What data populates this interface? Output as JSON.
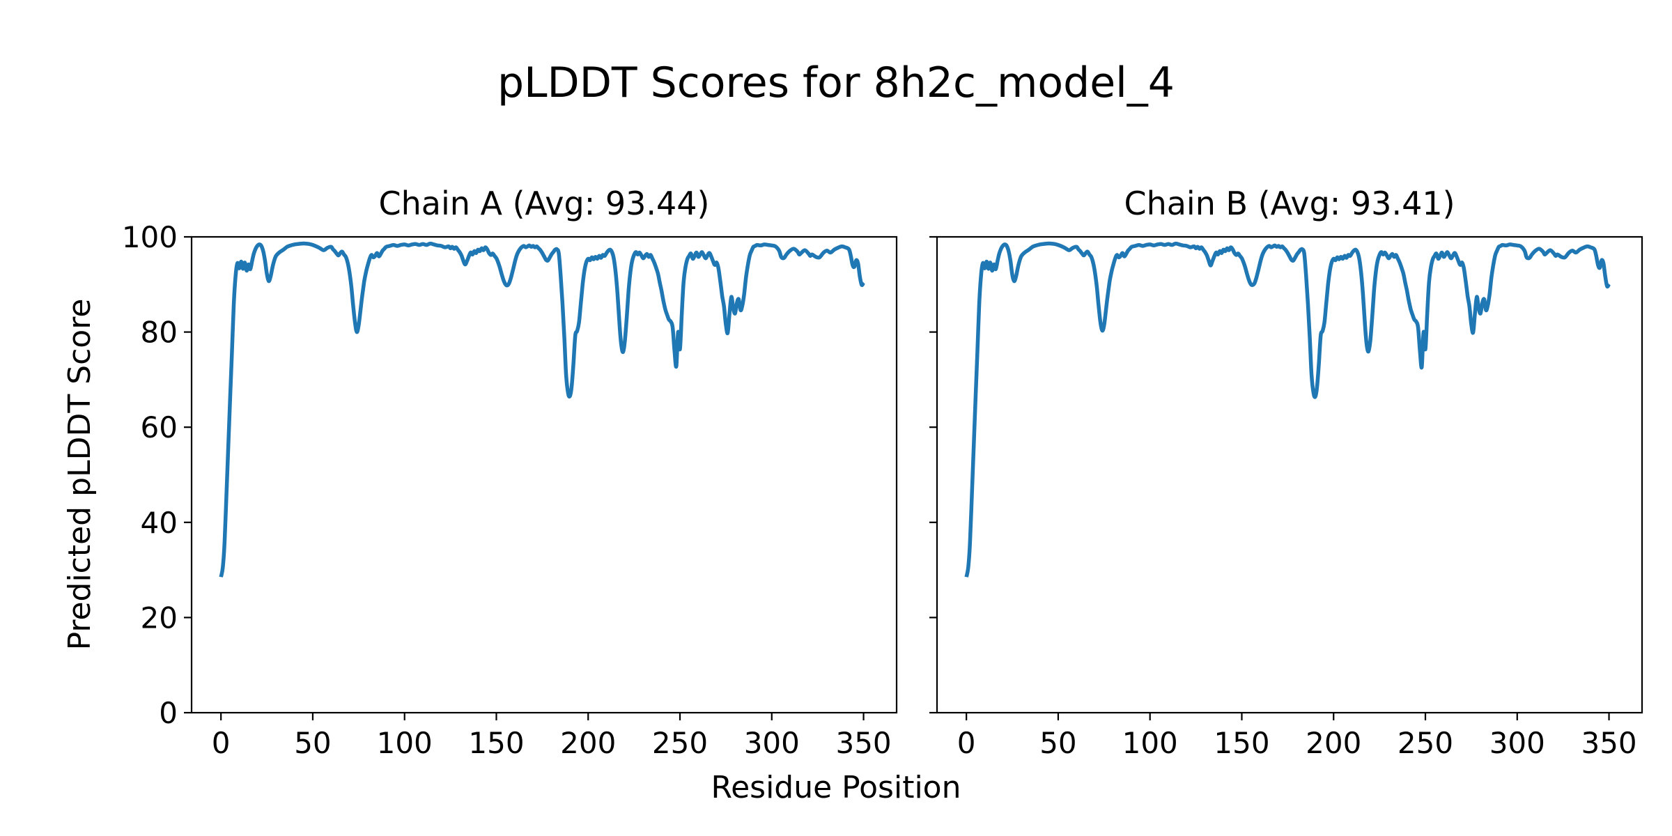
{
  "figure": {
    "title": "pLDDT Scores for 8h2c_model_4",
    "xlabel": "Residue Position",
    "ylabel": "Predicted pLDDT Score",
    "line_color": "#1f77b4",
    "background_color": "#ffffff",
    "text_color": "#000000"
  },
  "chart_data": [
    {
      "type": "line",
      "title": "Chain A (Avg: 93.44)",
      "chain": "A",
      "average_plddt": 93.44,
      "xlabel": "Residue Position",
      "ylabel": "Predicted pLDDT Score",
      "x_ticks": [
        0,
        50,
        100,
        150,
        200,
        250,
        300,
        350
      ],
      "y_ticks": [
        0,
        20,
        40,
        60,
        80,
        100
      ],
      "show_y_tick_labels": true,
      "xlim": [
        -16,
        368
      ],
      "ylim": [
        0,
        100
      ],
      "grid": false,
      "x": [
        0,
        1,
        2,
        3,
        4,
        5,
        6,
        7,
        8,
        9,
        10,
        11,
        12,
        13,
        14,
        15,
        16,
        17,
        18,
        19,
        20,
        21,
        22,
        23,
        24,
        25,
        26,
        27,
        28,
        29,
        30,
        32,
        34,
        36,
        38,
        40,
        42,
        44,
        46,
        48,
        50,
        52,
        54,
        56,
        58,
        60,
        61,
        62,
        63,
        64,
        65,
        66,
        67,
        68,
        69,
        70,
        71,
        72,
        73,
        74,
        75,
        76,
        77,
        78,
        79,
        80,
        81,
        82,
        83,
        84,
        85,
        86,
        87,
        88,
        89,
        90,
        92,
        94,
        96,
        98,
        100,
        102,
        104,
        106,
        108,
        110,
        112,
        114,
        116,
        118,
        120,
        122,
        124,
        125,
        126,
        127,
        128,
        129,
        130,
        131,
        132,
        133,
        134,
        135,
        136,
        137,
        138,
        139,
        140,
        141,
        142,
        143,
        144,
        145,
        146,
        147,
        148,
        149,
        150,
        151,
        152,
        153,
        154,
        155,
        156,
        157,
        158,
        159,
        160,
        161,
        162,
        163,
        164,
        165,
        166,
        167,
        168,
        169,
        170,
        171,
        172,
        173,
        174,
        175,
        176,
        177,
        178,
        179,
        180,
        181,
        182,
        183,
        184,
        185,
        186,
        187,
        188,
        189,
        190,
        191,
        192,
        193,
        194,
        195,
        196,
        197,
        198,
        199,
        200,
        201,
        202,
        203,
        204,
        205,
        206,
        207,
        208,
        209,
        210,
        211,
        212,
        213,
        214,
        215,
        216,
        217,
        218,
        219,
        220,
        221,
        222,
        223,
        224,
        225,
        226,
        227,
        228,
        229,
        230,
        231,
        232,
        233,
        234,
        235,
        236,
        237,
        238,
        239,
        240,
        241,
        242,
        243,
        244,
        245,
        246,
        247,
        248,
        249,
        250,
        251,
        252,
        253,
        254,
        255,
        256,
        257,
        258,
        259,
        260,
        261,
        262,
        263,
        264,
        265,
        266,
        267,
        268,
        269,
        270,
        271,
        272,
        273,
        274,
        275,
        276,
        277,
        278,
        279,
        280,
        281,
        282,
        283,
        284,
        285,
        286,
        287,
        288,
        289,
        290,
        291,
        292,
        294,
        296,
        298,
        300,
        302,
        304,
        305,
        306,
        307,
        308,
        310,
        312,
        314,
        315,
        316,
        318,
        320,
        321,
        322,
        324,
        326,
        328,
        330,
        332,
        334,
        336,
        338,
        340,
        342,
        343,
        344,
        345,
        346,
        347,
        348,
        349,
        350
      ],
      "y": [
        28.5,
        30.5,
        36,
        46,
        56,
        66,
        76,
        86,
        92,
        94.5,
        93.4,
        94.8,
        93.3,
        94.6,
        92.9,
        94.2,
        93.2,
        95,
        96.6,
        97.6,
        98.2,
        98.4,
        98.1,
        97,
        95,
        92.2,
        90.7,
        91.6,
        93.5,
        95,
        96,
        96.8,
        97.3,
        97.9,
        98.2,
        98.4,
        98.5,
        98.6,
        98.6,
        98.5,
        98.3,
        98,
        97.6,
        97.2,
        97.7,
        97.9,
        97.4,
        97,
        96.5,
        96.1,
        96.6,
        96.9,
        96.3,
        95.8,
        94.6,
        92.6,
        89.6,
        85.6,
        82,
        80,
        81.4,
        84.6,
        87.8,
        90.6,
        92.6,
        94.1,
        95.4,
        96.2,
        95.7,
        96,
        96.6,
        95.9,
        96.4,
        97.1,
        97.5,
        97.9,
        98.1,
        98.3,
        98.1,
        98.3,
        98.4,
        98.2,
        98.4,
        98.5,
        98.3,
        98.5,
        98.3,
        98.6,
        98.4,
        98.2,
        98.1,
        97.8,
        98,
        97.6,
        97.9,
        97.5,
        97.8,
        97.3,
        96.8,
        96.1,
        95,
        94.2,
        94.9,
        95.9,
        96.7,
        96.3,
        97,
        96.6,
        97.3,
        97,
        97.6,
        97.2,
        97.8,
        97.4,
        96.6,
        96.2,
        96.5,
        96,
        95.5,
        94.6,
        93.4,
        92,
        90.8,
        90,
        89.8,
        90.3,
        91.5,
        93,
        94.6,
        96,
        96.9,
        97.5,
        97.9,
        98.1,
        97.8,
        98,
        98.2,
        97.9,
        98.1,
        97.8,
        98,
        97.6,
        97.2,
        96.6,
        95.9,
        95.2,
        95,
        95.6,
        96.3,
        96.8,
        97.3,
        97.4,
        96.5,
        92,
        86,
        79,
        71,
        67.3,
        66.5,
        68.5,
        73.5,
        79.3,
        80.2,
        82,
        86,
        90,
        93,
        94.7,
        95.4,
        95.1,
        95.7,
        95.3,
        95.8,
        95.4,
        96,
        95.6,
        96.2,
        96,
        96.6,
        97.1,
        97.3,
        96.8,
        95.4,
        92.4,
        88,
        82,
        77.4,
        75.8,
        78.2,
        83,
        88.6,
        92.6,
        95,
        96.2,
        96.8,
        96.3,
        96.7,
        96.1,
        95.5,
        96,
        96.4,
        95.8,
        96.2,
        95.4,
        94.6,
        93.5,
        92.3,
        90.4,
        88.6,
        86.5,
        84.8,
        83.6,
        82.6,
        82.2,
        81,
        76.2,
        72.8,
        80,
        76.4,
        84,
        90.6,
        93.6,
        95.3,
        96,
        96.5,
        95.4,
        96,
        96.7,
        95.8,
        96.3,
        96.8,
        96.1,
        95.5,
        96.1,
        96.6,
        95.9,
        94.9,
        94.1,
        94.6,
        93.3,
        90.6,
        87.6,
        85.3,
        81.6,
        79.8,
        84,
        87.4,
        85.1,
        83.9,
        86.1,
        86.9,
        84.6,
        85.6,
        88.1,
        91.6,
        94.1,
        96.1,
        97.1,
        97.9,
        98.1,
        98.3,
        98.2,
        98.4,
        98.3,
        98.2,
        98,
        97.1,
        95.9,
        95.5,
        95.7,
        96.3,
        97.1,
        97.5,
        96.9,
        96.3,
        96.6,
        97.2,
        96.5,
        96,
        96.3,
        95.8,
        95.7,
        96.6,
        97.1,
        96.7,
        97.3,
        97.7,
        98,
        97.8,
        97.4,
        96.1,
        94.1,
        93.7,
        95.1,
        94.4,
        91.6,
        89.9,
        90.4
      ]
    },
    {
      "type": "line",
      "title": "Chain B (Avg: 93.41)",
      "chain": "B",
      "average_plddt": 93.41,
      "xlabel": "Residue Position",
      "ylabel": "Predicted pLDDT Score",
      "x_ticks": [
        0,
        50,
        100,
        150,
        200,
        250,
        300,
        350
      ],
      "y_ticks": [
        0,
        20,
        40,
        60,
        80,
        100
      ],
      "show_y_tick_labels": false,
      "xlim": [
        -16,
        368
      ],
      "ylim": [
        0,
        100
      ],
      "grid": false,
      "x": [
        0,
        1,
        2,
        3,
        4,
        5,
        6,
        7,
        8,
        9,
        10,
        11,
        12,
        13,
        14,
        15,
        16,
        17,
        18,
        19,
        20,
        21,
        22,
        23,
        24,
        25,
        26,
        27,
        28,
        29,
        30,
        32,
        34,
        36,
        38,
        40,
        42,
        44,
        46,
        48,
        50,
        52,
        54,
        56,
        58,
        60,
        61,
        62,
        63,
        64,
        65,
        66,
        67,
        68,
        69,
        70,
        71,
        72,
        73,
        74,
        75,
        76,
        77,
        78,
        79,
        80,
        81,
        82,
        83,
        84,
        85,
        86,
        87,
        88,
        89,
        90,
        92,
        94,
        96,
        98,
        100,
        102,
        104,
        106,
        108,
        110,
        112,
        114,
        116,
        118,
        120,
        122,
        124,
        125,
        126,
        127,
        128,
        129,
        130,
        131,
        132,
        133,
        134,
        135,
        136,
        137,
        138,
        139,
        140,
        141,
        142,
        143,
        144,
        145,
        146,
        147,
        148,
        149,
        150,
        151,
        152,
        153,
        154,
        155,
        156,
        157,
        158,
        159,
        160,
        161,
        162,
        163,
        164,
        165,
        166,
        167,
        168,
        169,
        170,
        171,
        172,
        173,
        174,
        175,
        176,
        177,
        178,
        179,
        180,
        181,
        182,
        183,
        184,
        185,
        186,
        187,
        188,
        189,
        190,
        191,
        192,
        193,
        194,
        195,
        196,
        197,
        198,
        199,
        200,
        201,
        202,
        203,
        204,
        205,
        206,
        207,
        208,
        209,
        210,
        211,
        212,
        213,
        214,
        215,
        216,
        217,
        218,
        219,
        220,
        221,
        222,
        223,
        224,
        225,
        226,
        227,
        228,
        229,
        230,
        231,
        232,
        233,
        234,
        235,
        236,
        237,
        238,
        239,
        240,
        241,
        242,
        243,
        244,
        245,
        246,
        247,
        248,
        249,
        250,
        251,
        252,
        253,
        254,
        255,
        256,
        257,
        258,
        259,
        260,
        261,
        262,
        263,
        264,
        265,
        266,
        267,
        268,
        269,
        270,
        271,
        272,
        273,
        274,
        275,
        276,
        277,
        278,
        279,
        280,
        281,
        282,
        283,
        284,
        285,
        286,
        287,
        288,
        289,
        290,
        291,
        292,
        294,
        296,
        298,
        300,
        302,
        304,
        305,
        306,
        307,
        308,
        310,
        312,
        314,
        315,
        316,
        318,
        320,
        321,
        322,
        324,
        326,
        328,
        330,
        332,
        334,
        336,
        338,
        340,
        342,
        343,
        344,
        345,
        346,
        347,
        348,
        349,
        350
      ],
      "y": [
        28.5,
        30.5,
        36,
        46,
        56,
        66,
        76,
        86,
        92,
        94.5,
        93.4,
        94.8,
        93.3,
        94.6,
        92.9,
        94.2,
        93.2,
        95,
        96.6,
        97.6,
        98.2,
        98.4,
        98.1,
        97,
        95,
        92,
        90.7,
        91.6,
        93.5,
        95,
        96,
        96.8,
        97.3,
        97.9,
        98.2,
        98.4,
        98.5,
        98.6,
        98.6,
        98.5,
        98.3,
        98,
        97.6,
        97.2,
        97.7,
        97.9,
        97.4,
        97,
        96.5,
        96.1,
        96.6,
        96.9,
        96.3,
        95.8,
        94.6,
        92.6,
        89.6,
        85.6,
        82,
        80.3,
        81.4,
        84.6,
        87.8,
        90.6,
        92.6,
        94.1,
        95.4,
        96.2,
        95.7,
        96,
        96.6,
        95.9,
        96.4,
        97.1,
        97.5,
        97.9,
        98.1,
        98.3,
        98.1,
        98.3,
        98.4,
        98.2,
        98.4,
        98.5,
        98.3,
        98.5,
        98.3,
        98.6,
        98.4,
        98.2,
        98.1,
        97.8,
        98,
        97.6,
        97.9,
        97.5,
        97.8,
        97.3,
        96.8,
        96.1,
        95,
        94,
        94.9,
        95.9,
        96.7,
        96.3,
        97,
        96.6,
        97.3,
        97,
        97.6,
        97.2,
        97.8,
        97.4,
        96.6,
        96.2,
        96.5,
        96,
        95.5,
        94.6,
        93.4,
        92,
        90.8,
        90,
        89.9,
        90.3,
        91.5,
        93,
        94.6,
        96,
        96.9,
        97.5,
        97.9,
        98.1,
        97.8,
        98,
        98.2,
        97.9,
        98.1,
        97.8,
        98,
        97.6,
        97.2,
        96.6,
        95.9,
        95.2,
        95,
        95.6,
        96.3,
        96.8,
        97.3,
        97.4,
        96.5,
        92,
        86,
        79,
        71,
        67.3,
        66.4,
        68.5,
        73.5,
        79.3,
        80.2,
        82,
        86,
        90,
        93,
        94.7,
        95.4,
        95.1,
        95.7,
        95.3,
        95.8,
        95.4,
        96,
        95.6,
        96.2,
        96,
        96.6,
        97.1,
        97.3,
        96.8,
        95.4,
        92.4,
        88,
        82,
        77.4,
        75.9,
        78.2,
        83,
        88.6,
        92.6,
        95,
        96.2,
        96.8,
        96.3,
        96.7,
        96.1,
        95.5,
        96,
        96.4,
        95.8,
        96.2,
        95.4,
        94.6,
        93.5,
        92.3,
        90.4,
        88.6,
        86.5,
        84.8,
        83.6,
        82.6,
        82.2,
        81,
        76.2,
        72.6,
        80,
        76.4,
        84,
        90.6,
        93.6,
        95.3,
        96,
        96.5,
        95.4,
        96,
        96.7,
        95.8,
        96.3,
        96.8,
        96.1,
        95.5,
        96.1,
        96.6,
        95.9,
        94.9,
        94.1,
        94.6,
        93.3,
        90.6,
        87.6,
        85.3,
        81.6,
        79.9,
        84,
        87.4,
        85.1,
        83.9,
        86.1,
        86.9,
        84.6,
        85.6,
        88.1,
        91.6,
        94.1,
        96.1,
        97.1,
        97.9,
        98.1,
        98.3,
        98.2,
        98.4,
        98.3,
        98.2,
        98,
        97.1,
        95.8,
        95.5,
        95.7,
        96.3,
        97.1,
        97.5,
        96.9,
        96.3,
        96.6,
        97.2,
        96.5,
        96,
        96.3,
        95.8,
        95.7,
        96.6,
        97.1,
        96.7,
        97.3,
        97.7,
        98,
        97.8,
        97.4,
        96.1,
        94.1,
        93.5,
        95.1,
        94.4,
        91.6,
        89.6,
        90.1
      ]
    }
  ]
}
